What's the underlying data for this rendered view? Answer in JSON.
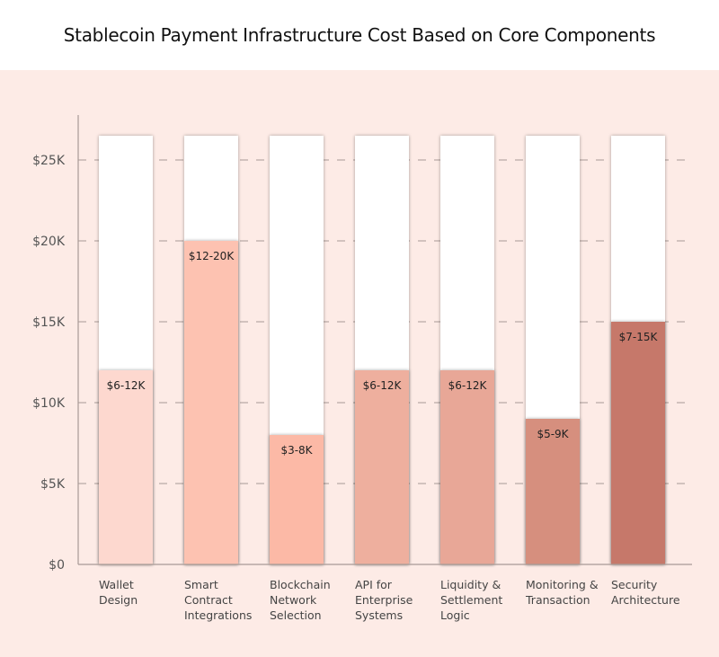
{
  "chart_data": {
    "type": "bar",
    "title": "Stablecoin Payment Infrastructure Cost Based on Core Components",
    "xlabel": "",
    "ylabel": "",
    "ylim": [
      0,
      26500
    ],
    "yticks": [
      0,
      5000,
      10000,
      15000,
      20000,
      25000
    ],
    "ytick_labels": [
      "$0",
      "$5K",
      "$10K",
      "$15K",
      "$20K",
      "$25K"
    ],
    "grid": "horizontal dashed",
    "categories": [
      [
        "Wallet",
        "Design"
      ],
      [
        "Smart",
        "Contract",
        "Integrations"
      ],
      [
        "Blockchain",
        "Network",
        "Selection"
      ],
      [
        "API for",
        "Enterprise",
        "Systems"
      ],
      [
        "Liquidity &",
        "Settlement",
        "Logic"
      ],
      [
        "Monitoring &",
        "Transaction"
      ],
      [
        "Security",
        "Architecture"
      ]
    ],
    "ranges_low": [
      6000,
      12000,
      3000,
      6000,
      6000,
      5000,
      7000
    ],
    "values": [
      12000,
      20000,
      8000,
      12000,
      12000,
      9000,
      15000
    ],
    "data_labels": [
      "$6-12K",
      "$12-20K",
      "$3-8K",
      "$6-12K",
      "$6-12K",
      "$5-9K",
      "$7-15K"
    ],
    "colors": [
      "#fdd8cf",
      "#fdc2b1",
      "#fcb9a6",
      "#eeaf9e",
      "#e8a797",
      "#d68f7e",
      "#c6786b"
    ],
    "background_bar_color": "#ffffff",
    "plot_background": "#fdebe6"
  }
}
